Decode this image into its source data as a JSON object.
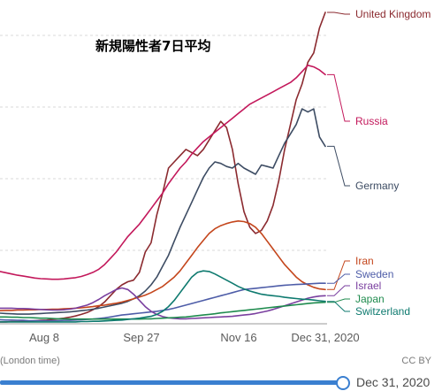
{
  "title": "新規陽性者7日平均",
  "time_note": "(London time)",
  "license": "CC BY",
  "slider": {
    "date": "Dec 31, 2020",
    "position": 1.0
  },
  "chart_data": {
    "type": "line",
    "x_ticks": [
      "Aug 8",
      "Sep 27",
      "Nov 16",
      "Dec 31, 2020"
    ],
    "series": [
      {
        "name": "United Kingdom",
        "color": "#8b2a2f",
        "values": [
          0.006,
          0.006,
          0.007,
          0.007,
          0.008,
          0.009,
          0.01,
          0.011,
          0.012,
          0.014,
          0.016,
          0.018,
          0.021,
          0.025,
          0.03,
          0.036,
          0.045,
          0.055,
          0.07,
          0.09,
          0.11,
          0.125,
          0.135,
          0.14,
          0.165,
          0.23,
          0.26,
          0.35,
          0.42,
          0.5,
          0.52,
          0.54,
          0.56,
          0.55,
          0.54,
          0.56,
          0.59,
          0.62,
          0.65,
          0.63,
          0.56,
          0.45,
          0.36,
          0.31,
          0.29,
          0.3,
          0.33,
          0.38,
          0.46,
          0.56,
          0.64,
          0.72,
          0.77,
          0.84,
          0.87,
          0.95,
          1.0
        ]
      },
      {
        "name": "Russia",
        "color": "#c3185b",
        "values": [
          0.168,
          0.164,
          0.16,
          0.156,
          0.153,
          0.15,
          0.147,
          0.145,
          0.144,
          0.143,
          0.143,
          0.144,
          0.146,
          0.148,
          0.152,
          0.158,
          0.165,
          0.175,
          0.19,
          0.21,
          0.23,
          0.255,
          0.28,
          0.3,
          0.32,
          0.345,
          0.37,
          0.395,
          0.42,
          0.45,
          0.475,
          0.5,
          0.52,
          0.545,
          0.565,
          0.585,
          0.6,
          0.615,
          0.63,
          0.645,
          0.66,
          0.675,
          0.69,
          0.705,
          0.715,
          0.725,
          0.735,
          0.745,
          0.755,
          0.765,
          0.775,
          0.79,
          0.81,
          0.83,
          0.825,
          0.815,
          0.8
        ]
      },
      {
        "name": "Germany",
        "color": "#3d4c63",
        "values": [
          0.034,
          0.033,
          0.032,
          0.031,
          0.031,
          0.031,
          0.032,
          0.033,
          0.034,
          0.035,
          0.036,
          0.037,
          0.038,
          0.04,
          0.042,
          0.044,
          0.047,
          0.05,
          0.054,
          0.058,
          0.062,
          0.066,
          0.072,
          0.08,
          0.09,
          0.105,
          0.125,
          0.15,
          0.185,
          0.22,
          0.265,
          0.31,
          0.35,
          0.39,
          0.43,
          0.47,
          0.5,
          0.52,
          0.515,
          0.505,
          0.5,
          0.515,
          0.5,
          0.49,
          0.48,
          0.51,
          0.505,
          0.5,
          0.54,
          0.58,
          0.61,
          0.64,
          0.69,
          0.68,
          0.69,
          0.6,
          0.57
        ]
      },
      {
        "name": "Iran",
        "color": "#c4461c",
        "values": [
          0.042,
          0.043,
          0.043,
          0.044,
          0.044,
          0.045,
          0.045,
          0.046,
          0.046,
          0.047,
          0.047,
          0.048,
          0.049,
          0.05,
          0.051,
          0.053,
          0.055,
          0.058,
          0.06,
          0.063,
          0.066,
          0.07,
          0.075,
          0.08,
          0.086,
          0.092,
          0.1,
          0.11,
          0.12,
          0.135,
          0.15,
          0.17,
          0.195,
          0.22,
          0.245,
          0.268,
          0.29,
          0.305,
          0.315,
          0.322,
          0.327,
          0.33,
          0.328,
          0.322,
          0.31,
          0.29,
          0.265,
          0.24,
          0.215,
          0.19,
          0.17,
          0.15,
          0.135,
          0.125,
          0.117,
          0.112,
          0.11
        ]
      },
      {
        "name": "Sweden",
        "color": "#4e5da8",
        "values": [
          0.013,
          0.012,
          0.012,
          0.011,
          0.011,
          0.01,
          0.01,
          0.01,
          0.01,
          0.01,
          0.01,
          0.011,
          0.011,
          0.012,
          0.013,
          0.014,
          0.015,
          0.017,
          0.019,
          0.022,
          0.025,
          0.028,
          0.03,
          0.032,
          0.034,
          0.036,
          0.038,
          0.04,
          0.043,
          0.046,
          0.05,
          0.055,
          0.06,
          0.065,
          0.07,
          0.075,
          0.08,
          0.085,
          0.09,
          0.095,
          0.1,
          0.105,
          0.11,
          0.112,
          0.114,
          0.116,
          0.118,
          0.12,
          0.122,
          0.124,
          0.125,
          0.126,
          0.127,
          0.128,
          0.129,
          0.13,
          0.13
        ]
      },
      {
        "name": "Israel",
        "color": "#7a3f9f",
        "values": [
          0.05,
          0.05,
          0.05,
          0.049,
          0.049,
          0.048,
          0.047,
          0.046,
          0.045,
          0.044,
          0.044,
          0.045,
          0.047,
          0.05,
          0.055,
          0.06,
          0.068,
          0.078,
          0.09,
          0.1,
          0.11,
          0.115,
          0.11,
          0.095,
          0.075,
          0.055,
          0.04,
          0.03,
          0.023,
          0.019,
          0.017,
          0.016,
          0.016,
          0.017,
          0.018,
          0.019,
          0.02,
          0.021,
          0.022,
          0.023,
          0.024,
          0.026,
          0.028,
          0.03,
          0.033,
          0.037,
          0.041,
          0.046,
          0.052,
          0.058,
          0.064,
          0.07,
          0.076,
          0.082,
          0.086,
          0.089,
          0.09
        ]
      },
      {
        "name": "Japan",
        "color": "#1f8b4e",
        "values": [
          0.022,
          0.022,
          0.021,
          0.021,
          0.02,
          0.02,
          0.019,
          0.018,
          0.018,
          0.017,
          0.016,
          0.016,
          0.015,
          0.015,
          0.015,
          0.015,
          0.015,
          0.015,
          0.015,
          0.015,
          0.015,
          0.015,
          0.015,
          0.015,
          0.015,
          0.016,
          0.016,
          0.017,
          0.018,
          0.019,
          0.02,
          0.021,
          0.022,
          0.024,
          0.026,
          0.028,
          0.03,
          0.032,
          0.035,
          0.037,
          0.039,
          0.041,
          0.043,
          0.045,
          0.047,
          0.049,
          0.051,
          0.053,
          0.055,
          0.057,
          0.059,
          0.061,
          0.063,
          0.065,
          0.067,
          0.068,
          0.069
        ]
      },
      {
        "name": "Switzerland",
        "color": "#0e7a6f",
        "values": [
          0.006,
          0.006,
          0.006,
          0.006,
          0.006,
          0.006,
          0.006,
          0.006,
          0.006,
          0.006,
          0.006,
          0.006,
          0.006,
          0.006,
          0.007,
          0.007,
          0.008,
          0.008,
          0.009,
          0.01,
          0.011,
          0.012,
          0.014,
          0.016,
          0.018,
          0.021,
          0.024,
          0.03,
          0.04,
          0.055,
          0.075,
          0.1,
          0.125,
          0.15,
          0.165,
          0.17,
          0.168,
          0.16,
          0.15,
          0.14,
          0.13,
          0.12,
          0.112,
          0.105,
          0.1,
          0.095,
          0.092,
          0.09,
          0.088,
          0.085,
          0.083,
          0.081,
          0.079,
          0.078,
          0.076,
          0.074,
          0.072
        ]
      }
    ]
  }
}
